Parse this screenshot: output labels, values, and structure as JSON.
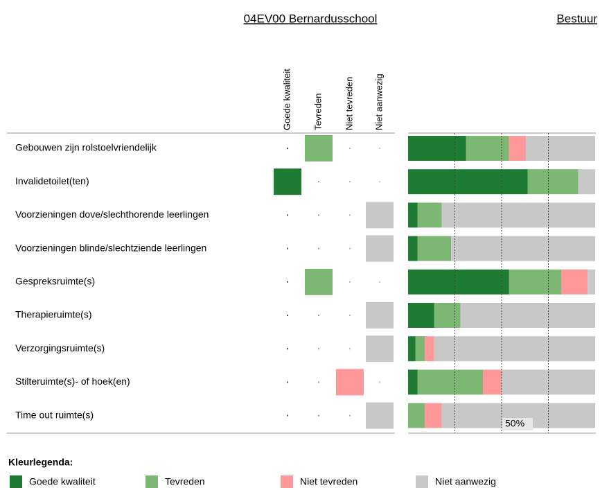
{
  "header": {
    "school": "04EV00 Bernardusschool",
    "board": "Bestuur"
  },
  "columns": [
    {
      "label": "Goede kwaliteit",
      "color": "#1e7b34"
    },
    {
      "label": "Tevreden",
      "color": "#7cb874"
    },
    {
      "label": "Niet tevreden",
      "color": "#ff9999"
    },
    {
      "label": "Niet aanwezig",
      "color": "#c8c8c8"
    }
  ],
  "rows": [
    {
      "label": "Gebouwen zijn rolstoelvriendelijk",
      "answer": 1,
      "board": [
        31,
        23,
        9,
        37
      ]
    },
    {
      "label": "Invalidetoilet(ten)",
      "answer": 0,
      "board": [
        64,
        27,
        0,
        9
      ]
    },
    {
      "label": "Voorzieningen dove/slechthorende leerlingen",
      "answer": 3,
      "board": [
        5,
        13,
        0,
        82
      ]
    },
    {
      "label": "Voorzieningen blinde/slechtziende leerlingen",
      "answer": 3,
      "board": [
        5,
        18,
        0,
        77
      ]
    },
    {
      "label": "Gespreksruimte(s)",
      "answer": 1,
      "board": [
        54,
        28,
        14,
        4
      ]
    },
    {
      "label": "Therapieruimte(s)",
      "answer": 3,
      "board": [
        14,
        14,
        0,
        72
      ]
    },
    {
      "label": "Verzorgingsruimte(s)",
      "answer": 3,
      "board": [
        4,
        5,
        5,
        86
      ]
    },
    {
      "label": "Stilteruimte(s)- of hoek(en)",
      "answer": 2,
      "board": [
        5,
        35,
        10,
        50
      ]
    },
    {
      "label": "Time out ruimte(s)",
      "answer": 3,
      "board": [
        0,
        9,
        9,
        82
      ]
    }
  ],
  "board_scale": {
    "xlim": [
      0,
      100
    ],
    "gridlines": [
      25,
      50,
      75
    ],
    "marker": {
      "value": 50,
      "label": "50%"
    }
  },
  "legend": {
    "title": "Kleurlegenda:",
    "items": [
      "Goede kwaliteit",
      "Tevreden",
      "Niet tevreden",
      "Niet aanwezig"
    ]
  }
}
